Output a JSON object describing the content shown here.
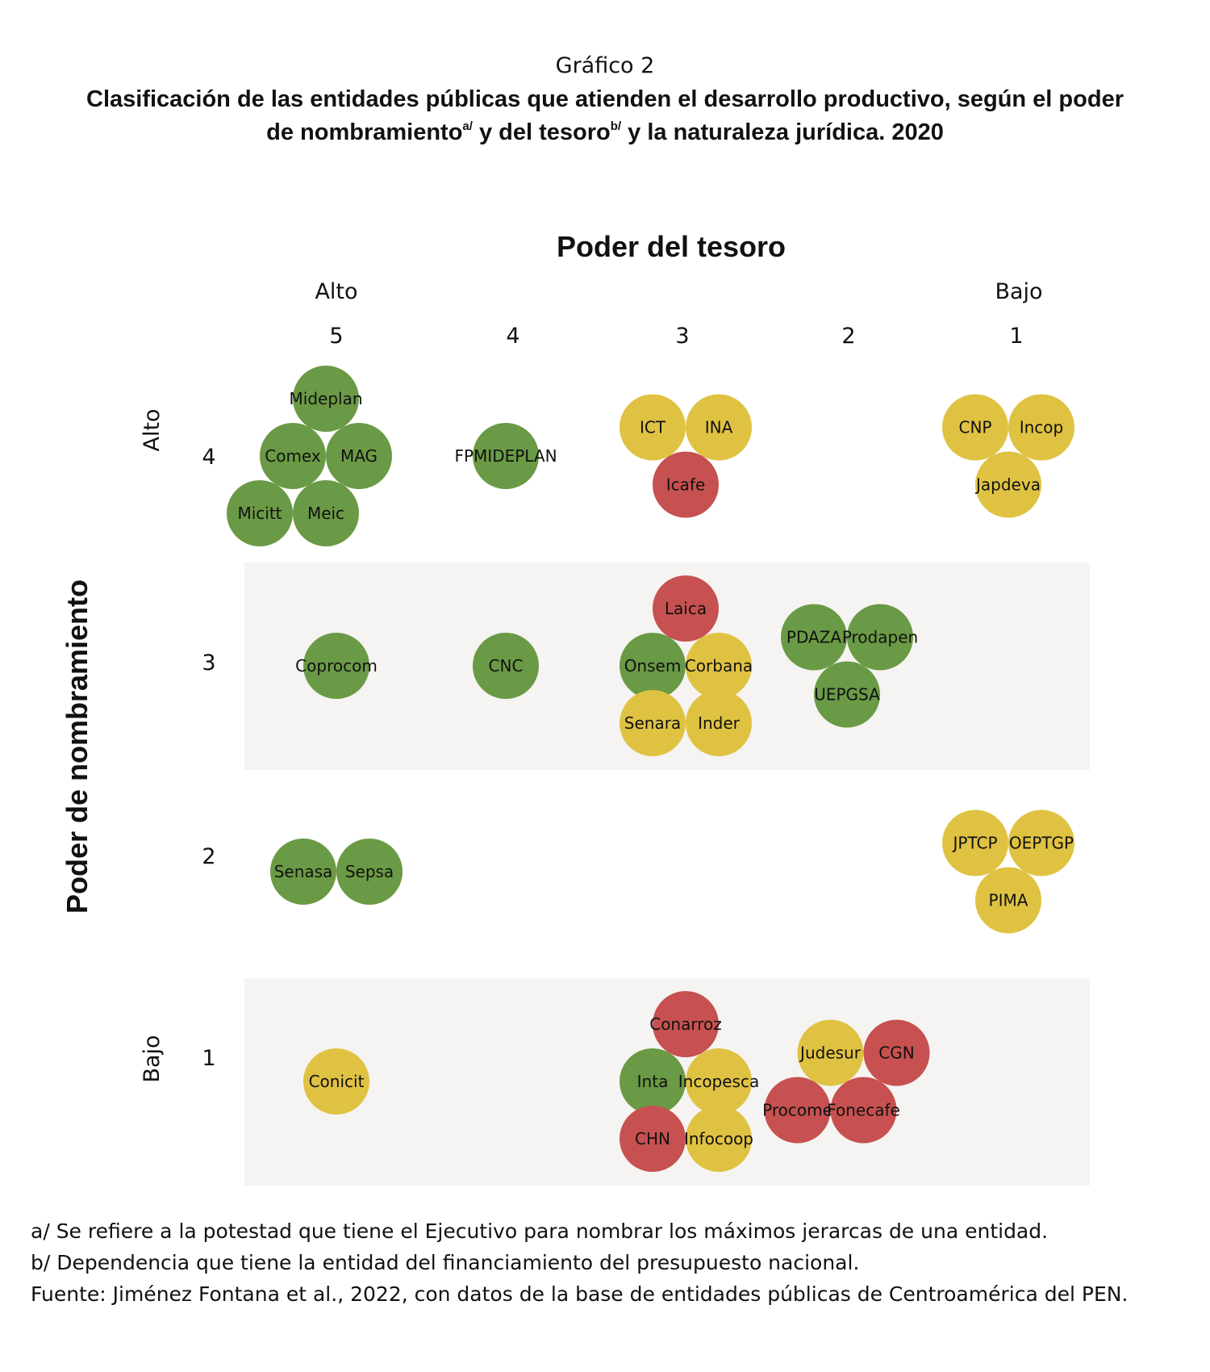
{
  "chart_data": {
    "type": "scatter",
    "title_prefix": "Gráfico 2",
    "title_line1": "Clasificación de las entidades públicas que atienden el desarrollo productivo, según el poder",
    "title_line2_a": "de nombramiento",
    "title_sup_a": "a/",
    "title_line2_b": " y del tesoro",
    "title_sup_b": "b/",
    "title_line2_c": " y la naturaleza jurídica. 2020",
    "xlabel": "Poder del tesoro",
    "x_high_label": "Alto",
    "x_low_label": "Bajo",
    "x_ticks": [
      "5",
      "4",
      "3",
      "2",
      "1"
    ],
    "ylabel": "Poder de nombramiento",
    "y_high_label": "Alto",
    "y_low_label": "Bajo",
    "y_ticks": [
      "4",
      "3",
      "2",
      "1"
    ],
    "colors": {
      "green": "#6a9a45",
      "yellow": "#e0c243",
      "red": "#c65150",
      "band": "#f5f4f2"
    },
    "points": [
      {
        "name": "Mideplan",
        "x": 5,
        "y": 4,
        "color": "green"
      },
      {
        "name": "Comex",
        "x": 5,
        "y": 4,
        "color": "green"
      },
      {
        "name": "MAG",
        "x": 5,
        "y": 4,
        "color": "green"
      },
      {
        "name": "Micitt",
        "x": 5,
        "y": 4,
        "color": "green"
      },
      {
        "name": "Meic",
        "x": 5,
        "y": 4,
        "color": "green"
      },
      {
        "name": "FPMIDEPLAN",
        "x": 4,
        "y": 4,
        "color": "green"
      },
      {
        "name": "ICT",
        "x": 3,
        "y": 4,
        "color": "yellow"
      },
      {
        "name": "INA",
        "x": 3,
        "y": 4,
        "color": "yellow"
      },
      {
        "name": "Icafe",
        "x": 3,
        "y": 4,
        "color": "red"
      },
      {
        "name": "CNP",
        "x": 1,
        "y": 4,
        "color": "yellow"
      },
      {
        "name": "Incop",
        "x": 1,
        "y": 4,
        "color": "yellow"
      },
      {
        "name": "Japdeva",
        "x": 1,
        "y": 4,
        "color": "yellow"
      },
      {
        "name": "Coprocom",
        "x": 5,
        "y": 3,
        "color": "green"
      },
      {
        "name": "CNC",
        "x": 4,
        "y": 3,
        "color": "green"
      },
      {
        "name": "Laica",
        "x": 3,
        "y": 3,
        "color": "red"
      },
      {
        "name": "Onsem",
        "x": 3,
        "y": 3,
        "color": "green"
      },
      {
        "name": "Corbana",
        "x": 3,
        "y": 3,
        "color": "yellow"
      },
      {
        "name": "Senara",
        "x": 3,
        "y": 3,
        "color": "yellow"
      },
      {
        "name": "Inder",
        "x": 3,
        "y": 3,
        "color": "yellow"
      },
      {
        "name": "PDAZA",
        "x": 2,
        "y": 3,
        "color": "green"
      },
      {
        "name": "Prodapen",
        "x": 2,
        "y": 3,
        "color": "green"
      },
      {
        "name": "UEPGSA",
        "x": 2,
        "y": 3,
        "color": "green"
      },
      {
        "name": "Senasa",
        "x": 5,
        "y": 2,
        "color": "green"
      },
      {
        "name": "Sepsa",
        "x": 5,
        "y": 2,
        "color": "green"
      },
      {
        "name": "JPTCP",
        "x": 1,
        "y": 2,
        "color": "yellow"
      },
      {
        "name": "OEPTGP",
        "x": 1,
        "y": 2,
        "color": "yellow"
      },
      {
        "name": "PIMA",
        "x": 1,
        "y": 2,
        "color": "yellow"
      },
      {
        "name": "Conicit",
        "x": 5,
        "y": 1,
        "color": "yellow"
      },
      {
        "name": "Conarroz",
        "x": 3,
        "y": 1,
        "color": "red"
      },
      {
        "name": "Inta",
        "x": 3,
        "y": 1,
        "color": "green"
      },
      {
        "name": "Incopesca",
        "x": 3,
        "y": 1,
        "color": "yellow"
      },
      {
        "name": "CHN",
        "x": 3,
        "y": 1,
        "color": "red"
      },
      {
        "name": "Infocoop",
        "x": 3,
        "y": 1,
        "color": "yellow"
      },
      {
        "name": "Judesur",
        "x": 2,
        "y": 1,
        "color": "yellow"
      },
      {
        "name": "CGN",
        "x": 2,
        "y": 1,
        "color": "red"
      },
      {
        "name": "Procome",
        "x": 2,
        "y": 1,
        "color": "red"
      },
      {
        "name": "Fonecafe",
        "x": 2,
        "y": 1,
        "color": "red"
      }
    ]
  },
  "notes": {
    "note_a": "a/ Se refiere a la potestad que tiene el Ejecutivo para nombrar los máximos jerarcas de una entidad.",
    "note_b": "b/ Dependencia que tiene la entidad del financiamiento del presupuesto nacional.",
    "source": "Fuente: Jiménez Fontana et al., 2022, con datos de la base de entidades públicas de Centroamérica del PEN."
  }
}
